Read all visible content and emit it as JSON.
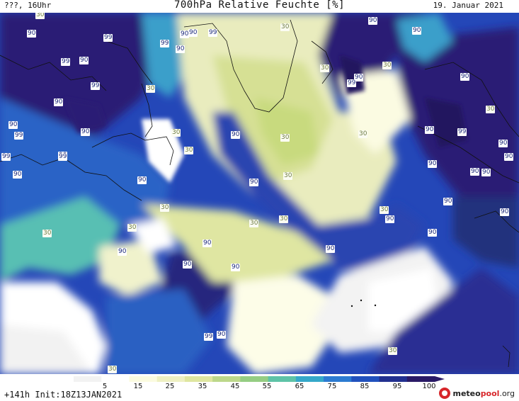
{
  "header": {
    "left": "???, 16Uhr",
    "title": "700hPa Relative Feuchte [%]",
    "date": "19. Januar 2021"
  },
  "legend": {
    "ticks": [
      "5",
      "15",
      "25",
      "35",
      "45",
      "55",
      "65",
      "75",
      "85",
      "95",
      "100"
    ],
    "colors": [
      "#f2f2f2",
      "#ffffff",
      "#fbfbe0",
      "#eef0c2",
      "#dfe6a0",
      "#bcd88a",
      "#95cd83",
      "#5ec3a7",
      "#35a8c9",
      "#2c7bd1",
      "#2151bd",
      "#22308f",
      "#2a1a66"
    ]
  },
  "footer": {
    "init": "+141h Init:18Z13JAN2021",
    "brand_part1": "meteo",
    "brand_part2": "pool",
    "brand_part3": ".org"
  },
  "map": {
    "labels": [
      {
        "t": "30",
        "v": 30
      },
      {
        "t": "90",
        "v": 90
      },
      {
        "t": "99",
        "v": 99
      },
      {
        "t": "90",
        "v": 90
      },
      {
        "t": "99",
        "v": 99
      },
      {
        "t": "90",
        "v": 90
      },
      {
        "t": "99",
        "v": 99
      },
      {
        "t": "90",
        "v": 90
      },
      {
        "t": "30",
        "v": 30
      },
      {
        "t": "90",
        "v": 90
      },
      {
        "t": "99",
        "v": 99
      },
      {
        "t": "90",
        "v": 90
      },
      {
        "t": "30",
        "v": 30
      },
      {
        "t": "90",
        "v": 90
      },
      {
        "t": "90",
        "v": 90
      },
      {
        "t": "99",
        "v": 99
      },
      {
        "t": "30",
        "v": 30
      },
      {
        "t": "99",
        "v": 99
      },
      {
        "t": "90",
        "v": 90
      },
      {
        "t": "30",
        "v": 30
      },
      {
        "t": "90",
        "v": 90
      },
      {
        "t": "90",
        "v": 90
      },
      {
        "t": "90",
        "v": 90
      },
      {
        "t": "99",
        "v": 99
      },
      {
        "t": "90",
        "v": 90
      },
      {
        "t": "99",
        "v": 99
      },
      {
        "t": "30",
        "v": 30
      },
      {
        "t": "30",
        "v": 30
      },
      {
        "t": "90",
        "v": 90
      },
      {
        "t": "30",
        "v": 30
      },
      {
        "t": "99",
        "v": 99
      },
      {
        "t": "30",
        "v": 30
      },
      {
        "t": "90",
        "v": 90
      },
      {
        "t": "90",
        "v": 90
      },
      {
        "t": "90",
        "v": 90
      },
      {
        "t": "99",
        "v": 99
      },
      {
        "t": "90",
        "v": 90
      },
      {
        "t": "30",
        "v": 30
      },
      {
        "t": "90",
        "v": 90
      },
      {
        "t": "90",
        "v": 90
      },
      {
        "t": "90",
        "v": 90
      },
      {
        "t": "90",
        "v": 90
      },
      {
        "t": "30",
        "v": 30
      },
      {
        "t": "90",
        "v": 90
      },
      {
        "t": "90",
        "v": 90
      },
      {
        "t": "30",
        "v": 30
      },
      {
        "t": "30",
        "v": 30
      },
      {
        "t": "90",
        "v": 90
      },
      {
        "t": "30",
        "v": 30
      },
      {
        "t": "30",
        "v": 30
      },
      {
        "t": "90",
        "v": 90
      },
      {
        "t": "90",
        "v": 90
      },
      {
        "t": "90",
        "v": 90
      },
      {
        "t": "90",
        "v": 90
      },
      {
        "t": "90",
        "v": 90
      },
      {
        "t": "30",
        "v": 30
      },
      {
        "t": "90",
        "v": 90
      },
      {
        "t": "30",
        "v": 30
      },
      {
        "t": "90",
        "v": 90
      },
      {
        "t": "99",
        "v": 99
      },
      {
        "t": "90",
        "v": 90
      },
      {
        "t": "30",
        "v": 30
      },
      {
        "t": "30",
        "v": 30
      }
    ]
  }
}
